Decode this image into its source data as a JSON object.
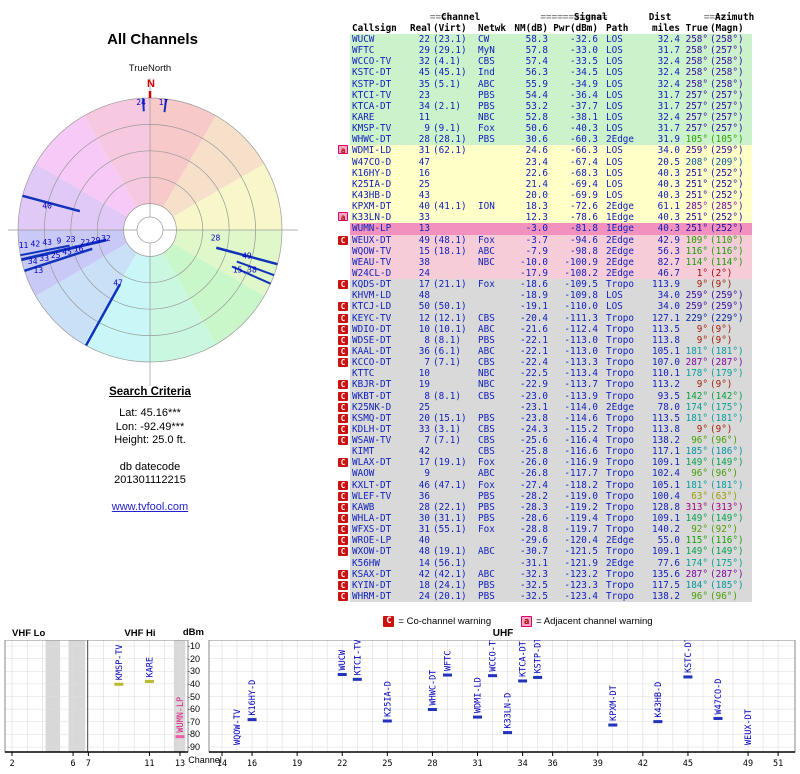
{
  "page": {
    "title": "All Channels",
    "truenorth_label": "TrueNorth",
    "north_label": "N",
    "search": {
      "heading": "Search Criteria",
      "lat": "Lat: 45.16***",
      "lon": "Lon: -92.49***",
      "height": "Height: 25.0 ft.",
      "datecode_label": "db datecode",
      "datecode": "201301112215",
      "link": "www.tvfool.com"
    }
  },
  "legend": {
    "co_symbol": "C",
    "co": "= Co-channel warning",
    "adj_symbol": "a",
    "adj": "= Adjacent channel warning"
  },
  "table": {
    "header": {
      "eq2": "==",
      "eq6": "======",
      "channel_group": "Channel",
      "signal_group": "Signal",
      "dist_group": "Dist",
      "azimuth_group": "Azimuth",
      "cols": [
        "Callsign",
        "Real",
        "(Virt)",
        "Netwk",
        "NM(dB)",
        "Pwr(dBm)",
        "Path",
        "miles",
        "True",
        "(Magn)"
      ]
    },
    "band_colors": {
      "green": "#ccf2cc",
      "yellow": "#ffffc8",
      "pink": "#f7ccd9",
      "hotpink": "#f291bd",
      "gray": "#d9d9d9"
    },
    "warning_colors": {
      "C": "#cc1111",
      "a": "#f6a8c3"
    },
    "rows": [
      [
        "",
        "WUCW",
        "22",
        "(23.1)",
        "CW",
        "58.3",
        "-32.6",
        "LOS",
        "32.4",
        "258°",
        "(258°)",
        "green"
      ],
      [
        "",
        "WFTC",
        "29",
        "(29.1)",
        "MyN",
        "57.8",
        "-33.0",
        "LOS",
        "31.7",
        "258°",
        "(257°)",
        "green"
      ],
      [
        "",
        "WCCO-TV",
        "32",
        "(4.1)",
        "CBS",
        "57.4",
        "-33.5",
        "LOS",
        "32.4",
        "258°",
        "(258°)",
        "green"
      ],
      [
        "",
        "KSTC-DT",
        "45",
        "(45.1)",
        "Ind",
        "56.3",
        "-34.5",
        "LOS",
        "32.4",
        "258°",
        "(258°)",
        "green"
      ],
      [
        "",
        "KSTP-DT",
        "35",
        "(5.1)",
        "ABC",
        "55.9",
        "-34.9",
        "LOS",
        "32.4",
        "258°",
        "(258°)",
        "green"
      ],
      [
        "",
        "KTCI-TV",
        "23",
        "",
        "PBS",
        "54.4",
        "-36.4",
        "LOS",
        "31.7",
        "257°",
        "(257°)",
        "green"
      ],
      [
        "",
        "KTCA-DT",
        "34",
        "(2.1)",
        "PBS",
        "53.2",
        "-37.7",
        "LOS",
        "31.7",
        "257°",
        "(257°)",
        "green"
      ],
      [
        "",
        "KARE",
        "11",
        "",
        "NBC",
        "52.8",
        "-38.1",
        "LOS",
        "32.4",
        "257°",
        "(257°)",
        "green"
      ],
      [
        "",
        "KMSP-TV",
        "9",
        "(9.1)",
        "Fox",
        "50.6",
        "-40.3",
        "LOS",
        "31.7",
        "257°",
        "(257°)",
        "green"
      ],
      [
        "",
        "WHWC-DT",
        "28",
        "(28.1)",
        "PBS",
        "30.6",
        "-60.3",
        "2Edge",
        "31.9",
        "105°",
        "(105°)",
        "green"
      ],
      [
        "a",
        "WDMI-LD",
        "31",
        "(62.1)",
        "",
        "24.6",
        "-66.3",
        "LOS",
        "34.0",
        "259°",
        "(259°)",
        "yellow"
      ],
      [
        "",
        "W47CO-D",
        "47",
        "",
        "",
        "23.4",
        "-67.4",
        "LOS",
        "20.5",
        "208°",
        "(209°)",
        "yellow"
      ],
      [
        "",
        "K16HY-D",
        "16",
        "",
        "",
        "22.6",
        "-68.3",
        "LOS",
        "40.3",
        "251°",
        "(252°)",
        "yellow"
      ],
      [
        "",
        "K25IA-D",
        "25",
        "",
        "",
        "21.4",
        "-69.4",
        "LOS",
        "40.3",
        "251°",
        "(252°)",
        "yellow"
      ],
      [
        "",
        "K43HB-D",
        "43",
        "",
        "",
        "20.0",
        "-69.9",
        "LOS",
        "40.3",
        "251°",
        "(252°)",
        "yellow"
      ],
      [
        "",
        "KPXM-DT",
        "40",
        "(41.1)",
        "ION",
        "18.3",
        "-72.6",
        "2Edge",
        "61.1",
        "285°",
        "(285°)",
        "yellow"
      ],
      [
        "a",
        "K33LN-D",
        "33",
        "",
        "",
        "12.3",
        "-78.6",
        "1Edge",
        "40.3",
        "251°",
        "(252°)",
        "yellow"
      ],
      [
        "",
        "WUMN-LP",
        "13",
        "",
        "",
        "-3.0",
        "-81.8",
        "1Edge",
        "40.3",
        "251°",
        "(252°)",
        "hotpink"
      ],
      [
        "C",
        "WEUX-DT",
        "49",
        "(48.1)",
        "Fox",
        "-3.7",
        "-94.6",
        "2Edge",
        "42.9",
        "109°",
        "(110°)",
        "pink"
      ],
      [
        "",
        "WQOW-TV",
        "15",
        "(18.1)",
        "ABC",
        "-7.9",
        "-98.8",
        "2Edge",
        "56.3",
        "116°",
        "(116°)",
        "pink"
      ],
      [
        "",
        "WEAU-TV",
        "38",
        "",
        "NBC",
        "-10.0",
        "-100.9",
        "2Edge",
        "82.7",
        "114°",
        "(114°)",
        "pink"
      ],
      [
        "",
        "W24CL-D",
        "24",
        "",
        "",
        "-17.9",
        "-108.2",
        "2Edge",
        "46.7",
        "1°",
        "(2°)",
        "pink"
      ],
      [
        "C",
        "KQDS-DT",
        "17",
        "(21.1)",
        "Fox",
        "-18.6",
        "-109.5",
        "Tropo",
        "113.9",
        "9°",
        "(9°)",
        "gray"
      ],
      [
        "",
        "KHVM-LD",
        "48",
        "",
        "",
        "-18.9",
        "-109.8",
        "LOS",
        "34.0",
        "259°",
        "(259°)",
        "gray"
      ],
      [
        "C",
        "KTCJ-LD",
        "50",
        "(50.1)",
        "",
        "-19.1",
        "-110.0",
        "LOS",
        "34.0",
        "259°",
        "(259°)",
        "gray"
      ],
      [
        "C",
        "KEYC-TV",
        "12",
        "(12.1)",
        "CBS",
        "-20.4",
        "-111.3",
        "Tropo",
        "127.1",
        "229°",
        "(229°)",
        "gray"
      ],
      [
        "C",
        "WDIO-DT",
        "10",
        "(10.1)",
        "ABC",
        "-21.6",
        "-112.4",
        "Tropo",
        "113.5",
        "9°",
        "(9°)",
        "gray"
      ],
      [
        "C",
        "WDSE-DT",
        "8",
        "(8.1)",
        "PBS",
        "-22.1",
        "-113.0",
        "Tropo",
        "113.8",
        "9°",
        "(9°)",
        "gray"
      ],
      [
        "C",
        "KAAL-DT",
        "36",
        "(6.1)",
        "ABC",
        "-22.1",
        "-113.0",
        "Tropo",
        "105.1",
        "181°",
        "(181°)",
        "gray"
      ],
      [
        "C",
        "KCCO-DT",
        "7",
        "(7.1)",
        "CBS",
        "-22.4",
        "-113.3",
        "Tropo",
        "107.0",
        "287°",
        "(287°)",
        "gray"
      ],
      [
        "",
        "KTTC",
        "10",
        "",
        "NBC",
        "-22.5",
        "-113.4",
        "Tropo",
        "110.1",
        "178°",
        "(179°)",
        "gray"
      ],
      [
        "C",
        "KBJR-DT",
        "19",
        "",
        "NBC",
        "-22.9",
        "-113.7",
        "Tropo",
        "113.2",
        "9°",
        "(9°)",
        "gray"
      ],
      [
        "C",
        "WKBT-DT",
        "8",
        "(8.1)",
        "CBS",
        "-23.0",
        "-113.9",
        "Tropo",
        "93.5",
        "142°",
        "(142°)",
        "gray"
      ],
      [
        "C",
        "K25NK-D",
        "25",
        "",
        "",
        "-23.1",
        "-114.0",
        "2Edge",
        "78.0",
        "174°",
        "(175°)",
        "gray"
      ],
      [
        "C",
        "KSMQ-DT",
        "20",
        "(15.1)",
        "PBS",
        "-23.8",
        "-114.6",
        "Tropo",
        "113.5",
        "181°",
        "(181°)",
        "gray"
      ],
      [
        "C",
        "KDLH-DT",
        "33",
        "(3.1)",
        "CBS",
        "-24.3",
        "-115.2",
        "Tropo",
        "113.8",
        "9°",
        "(9°)",
        "gray"
      ],
      [
        "C",
        "WSAW-TV",
        "7",
        "(7.1)",
        "CBS",
        "-25.6",
        "-116.4",
        "Tropo",
        "138.2",
        "96°",
        "(96°)",
        "gray"
      ],
      [
        "",
        "KIMT",
        "42",
        "",
        "CBS",
        "-25.8",
        "-116.6",
        "Tropo",
        "117.1",
        "185°",
        "(186°)",
        "gray"
      ],
      [
        "C",
        "WLAX-DT",
        "17",
        "(19.1)",
        "Fox",
        "-26.0",
        "-116.9",
        "Tropo",
        "109.1",
        "149°",
        "(149°)",
        "gray"
      ],
      [
        "",
        "WAOW",
        "9",
        "",
        "ABC",
        "-26.8",
        "-117.7",
        "Tropo",
        "102.4",
        "96°",
        "(96°)",
        "gray"
      ],
      [
        "C",
        "KXLT-DT",
        "46",
        "(47.1)",
        "Fox",
        "-27.4",
        "-118.2",
        "Tropo",
        "105.1",
        "181°",
        "(181°)",
        "gray"
      ],
      [
        "C",
        "WLEF-TV",
        "36",
        "",
        "PBS",
        "-28.2",
        "-119.0",
        "Tropo",
        "100.4",
        "63°",
        "(63°)",
        "gray"
      ],
      [
        "C",
        "KAWB",
        "28",
        "(22.1)",
        "PBS",
        "-28.3",
        "-119.2",
        "Tropo",
        "128.8",
        "313°",
        "(313°)",
        "gray"
      ],
      [
        "C",
        "WHLA-DT",
        "30",
        "(31.1)",
        "PBS",
        "-28.6",
        "-119.4",
        "Tropo",
        "109.1",
        "149°",
        "(149°)",
        "gray"
      ],
      [
        "C",
        "WFXS-DT",
        "31",
        "(55.1)",
        "Fox",
        "-28.8",
        "-119.7",
        "Tropo",
        "140.2",
        "92°",
        "(92°)",
        "gray"
      ],
      [
        "C",
        "WROE-LP",
        "40",
        "",
        "",
        "-29.6",
        "-120.4",
        "2Edge",
        "55.0",
        "115°",
        "(116°)",
        "gray"
      ],
      [
        "C",
        "WXOW-DT",
        "48",
        "(19.1)",
        "ABC",
        "-30.7",
        "-121.5",
        "Tropo",
        "109.1",
        "149°",
        "(149°)",
        "gray"
      ],
      [
        "",
        "K56HW",
        "14",
        "(56.1)",
        "",
        "-31.1",
        "-121.9",
        "2Edge",
        "77.6",
        "174°",
        "(175°)",
        "gray"
      ],
      [
        "C",
        "KSAX-DT",
        "42",
        "(42.1)",
        "ABC",
        "-32.3",
        "-123.2",
        "Tropo",
        "135.6",
        "287°",
        "(287°)",
        "gray"
      ],
      [
        "C",
        "KYIN-DT",
        "18",
        "(24.1)",
        "PBS",
        "-32.5",
        "-123.3",
        "Tropo",
        "117.5",
        "184°",
        "(185°)",
        "gray"
      ],
      [
        "C",
        "WHRM-DT",
        "24",
        "(20.1)",
        "PBS",
        "-32.5",
        "-123.4",
        "Tropo",
        "138.2",
        "96°",
        "(96°)",
        "gray"
      ]
    ]
  },
  "chart_data": [
    {
      "type": "scatter",
      "name": "azimuth-radar",
      "title": "All Channels",
      "rings": 5,
      "ring_color": "#999999",
      "spoke_color": "#1133bb",
      "label_color": "#0000cc",
      "spokes": [
        {
          "az": 257,
          "r1": 1.0,
          "r2": 0.34,
          "w": 3
        },
        {
          "az": 252,
          "r1": 1.0,
          "r2": 0.46,
          "w": 2.5
        },
        {
          "az": 259,
          "r1": 1.0,
          "r2": 0.62,
          "w": 2
        },
        {
          "az": 285,
          "r1": 1.0,
          "r2": 0.55,
          "w": 2.5
        },
        {
          "az": 209,
          "r1": 1.0,
          "r2": 0.47,
          "w": 2.5
        },
        {
          "az": 105,
          "r1": 1.0,
          "r2": 0.52,
          "w": 2.5
        },
        {
          "az": 110,
          "r1": 1.0,
          "r2": 0.7,
          "w": 2
        },
        {
          "az": 114,
          "r1": 1.0,
          "r2": 0.68,
          "w": 2
        },
        {
          "az": 357,
          "r1": 1.0,
          "r2": 0.9,
          "w": 2
        },
        {
          "az": 7,
          "r1": 1.0,
          "r2": 0.9,
          "w": 2
        }
      ],
      "labels": [
        {
          "az": 356,
          "r": 0.97,
          "text": "24"
        },
        {
          "az": 6,
          "r": 0.97,
          "text": "17"
        },
        {
          "az": 283,
          "r": 0.8,
          "text": "40"
        },
        {
          "az": 97,
          "r": 0.5,
          "text": "28"
        },
        {
          "az": 105,
          "r": 0.76,
          "text": "49"
        },
        {
          "az": 113,
          "r": 0.78,
          "text": "15,38"
        },
        {
          "az": 211,
          "r": 0.47,
          "text": "47"
        },
        {
          "az": 263,
          "r": 0.965,
          "text": "11"
        },
        {
          "az": 255,
          "r": 0.92,
          "text": "34"
        },
        {
          "az": 263,
          "r": 0.875,
          "text": "42"
        },
        {
          "az": 255,
          "r": 0.83,
          "text": "33"
        },
        {
          "az": 263,
          "r": 0.785,
          "text": "43"
        },
        {
          "az": 255,
          "r": 0.74,
          "text": "25"
        },
        {
          "az": 263,
          "r": 0.695,
          "text": "9"
        },
        {
          "az": 255,
          "r": 0.65,
          "text": "45"
        },
        {
          "az": 263,
          "r": 0.605,
          "text": "23"
        },
        {
          "az": 255,
          "r": 0.56,
          "text": "16"
        },
        {
          "az": 250,
          "r": 0.9,
          "text": "13"
        },
        {
          "az": 259,
          "r": 0.5,
          "text": "22"
        },
        {
          "az": 259,
          "r": 0.42,
          "text": "29"
        },
        {
          "az": 259,
          "r": 0.34,
          "text": "32"
        }
      ]
    },
    {
      "type": "bar",
      "name": "vhf-signal-graph",
      "xlabel": "Channel",
      "ylabel": "dBm",
      "x_range": [
        2,
        13
      ],
      "y_range": [
        -90,
        -10
      ],
      "x_ticks": [
        2,
        6,
        7,
        11,
        13
      ],
      "regions": [
        {
          "label": "VHF Lo",
          "from": 2,
          "to": 6.95
        },
        {
          "label": "VHF Hi",
          "from": 6.95,
          "to": 13
        }
      ],
      "gray_bands": [
        [
          4.2,
          5.15
        ],
        [
          5.7,
          6.8
        ],
        [
          12.6,
          13.35
        ]
      ],
      "bar_color": "#2233bb",
      "label_color": "#0000bb",
      "bars": [
        {
          "callsign": "KMSP-TV",
          "ch": 9,
          "dbm": -40.3,
          "color": "#b9b932"
        },
        {
          "callsign": "KARE",
          "ch": 11,
          "dbm": -38.1,
          "color": "#b9b932"
        },
        {
          "callsign": "WUMN-LP",
          "ch": 13,
          "dbm": -81.8,
          "color": "#ee5fa8",
          "label_color": "#dd2288"
        }
      ]
    },
    {
      "type": "bar",
      "name": "uhf-signal-graph",
      "title": "UHF",
      "x_range": [
        14,
        51
      ],
      "y_range": [
        -90,
        -10
      ],
      "x_ticks": [
        14,
        16,
        19,
        22,
        25,
        28,
        31,
        34,
        36,
        39,
        42,
        45,
        49,
        51
      ],
      "dbm_ticks": [
        -10,
        -20,
        -30,
        -40,
        -50,
        -60,
        -70,
        -80,
        -90
      ],
      "bar_color": "#2233bb",
      "label_color": "#0000bb",
      "bars": [
        {
          "callsign": "WQOW-TV",
          "ch": 15,
          "dbm": -98.8
        },
        {
          "callsign": "K16HY-D",
          "ch": 16,
          "dbm": -68.3
        },
        {
          "callsign": "WUCW",
          "ch": 22,
          "dbm": -32.6
        },
        {
          "callsign": "KTCI-TV",
          "ch": 23,
          "dbm": -36.4
        },
        {
          "callsign": "K25IA-D",
          "ch": 25,
          "dbm": -69.4
        },
        {
          "callsign": "WHWC-DT",
          "ch": 28,
          "dbm": -60.3
        },
        {
          "callsign": "WFTC",
          "ch": 29,
          "dbm": -33.0
        },
        {
          "callsign": "WDMI-LD",
          "ch": 31,
          "dbm": -66.3
        },
        {
          "callsign": "WCCO-TV",
          "ch": 32,
          "dbm": -33.5
        },
        {
          "callsign": "K33LN-D",
          "ch": 33,
          "dbm": -78.6
        },
        {
          "callsign": "KTCA-DT",
          "ch": 34,
          "dbm": -37.7
        },
        {
          "callsign": "KSTP-DT",
          "ch": 35,
          "dbm": -34.9
        },
        {
          "callsign": "KPXM-DT",
          "ch": 40,
          "dbm": -72.6
        },
        {
          "callsign": "K43HB-D",
          "ch": 43,
          "dbm": -69.9
        },
        {
          "callsign": "KSTC-DT",
          "ch": 45,
          "dbm": -34.5
        },
        {
          "callsign": "W47CO-D",
          "ch": 47,
          "dbm": -67.4
        },
        {
          "callsign": "WEUX-DT",
          "ch": 49,
          "dbm": -94.6
        }
      ]
    }
  ]
}
